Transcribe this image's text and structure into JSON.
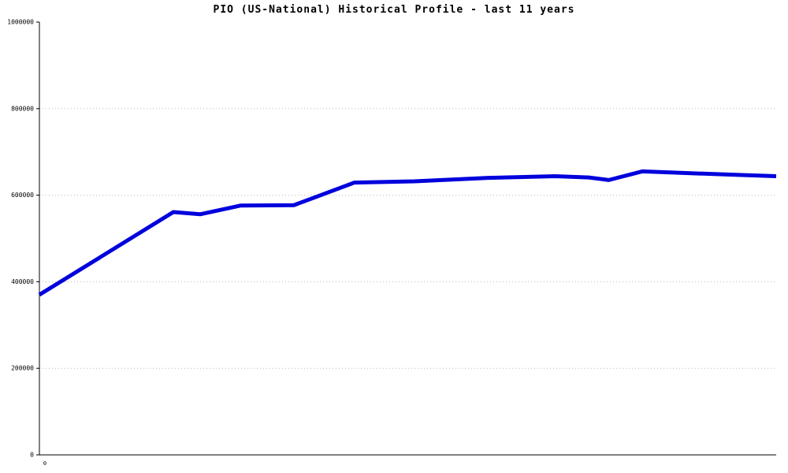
{
  "title": "PIO (US-National) Historical Profile - last 11 years",
  "chart_data": {
    "type": "line",
    "title": "PIO (US-National) Historical Profile - last 11 years",
    "xlabel": "",
    "ylabel": "",
    "xlim": [
      0,
      11
    ],
    "ylim": [
      0,
      1000000
    ],
    "y_ticks": [
      0,
      200000,
      400000,
      600000,
      800000,
      1000000
    ],
    "x_tick_labels": [
      "0"
    ],
    "grid": "horizontal-dotted",
    "legend": "none",
    "line_color": "#0000dd",
    "grid_color": "#b8b8b8",
    "axis_color": "#000000",
    "series": [
      {
        "name": "PIO",
        "x": [
          0.0,
          2.0,
          2.4,
          3.0,
          3.8,
          4.7,
          5.6,
          6.7,
          7.7,
          8.2,
          8.5,
          9.0,
          9.5,
          10.4,
          11.0
        ],
        "values": [
          370000,
          561000,
          556000,
          576000,
          577000,
          629000,
          632000,
          640000,
          644000,
          641000,
          635000,
          655000,
          652000,
          647000,
          644000
        ]
      }
    ]
  }
}
